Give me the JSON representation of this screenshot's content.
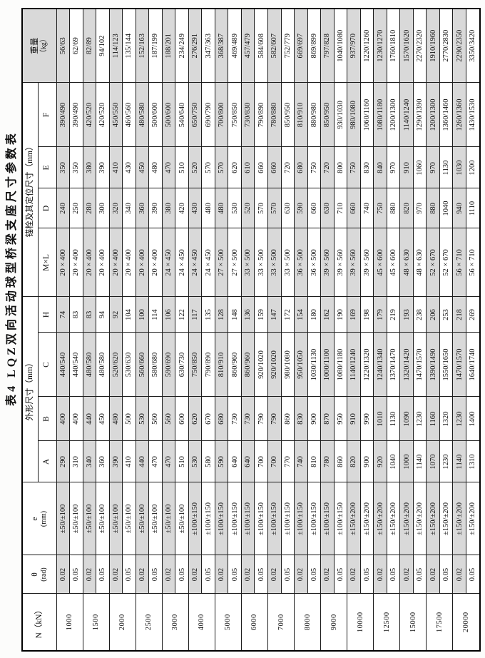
{
  "title": "表4 LQZ双向活动球型桥梁支座尺寸参数表",
  "colors": {
    "stripe": "#d9d9d9",
    "grid": "#1c1c1c",
    "paper": "#fcfcfb"
  },
  "layout_note": "table printed rotated 90° counter-clockwise on portrait page",
  "table": {
    "headers": {
      "load": "N（kN）",
      "theta": "θ",
      "theta_unit": "(rad)",
      "e": "e",
      "e_unit": "(mm)",
      "shape_group": "外形尺寸（mm）",
      "anchor_group": "锚栓及其定位尺寸（mm）",
      "A": "A",
      "B": "B",
      "C": "C",
      "H": "H",
      "MxL": "M×L",
      "D": "D",
      "E": "E",
      "F": "F",
      "weight": "重量",
      "weight_unit": "（kg）"
    },
    "groups": [
      {
        "n": "1000",
        "rows": [
          {
            "theta": "0.02",
            "e": "±50/±100",
            "A": "290",
            "B": "400",
            "C": "440/540",
            "H": "74",
            "MxL": "20 × 400",
            "D": "240",
            "E": "350",
            "F": "390/490",
            "W": "56/63"
          },
          {
            "theta": "0.05",
            "e": "±50/±100",
            "A": "310",
            "B": "400",
            "C": "440/540",
            "H": "83",
            "MxL": "20 × 400",
            "D": "250",
            "E": "350",
            "F": "390/490",
            "W": "62/69"
          }
        ]
      },
      {
        "n": "1500",
        "rows": [
          {
            "theta": "0.02",
            "e": "±50/±100",
            "A": "340",
            "B": "440",
            "C": "480/580",
            "H": "83",
            "MxL": "20 × 400",
            "D": "280",
            "E": "380",
            "F": "420/520",
            "W": "82/89"
          },
          {
            "theta": "0.05",
            "e": "±50/±100",
            "A": "360",
            "B": "450",
            "C": "480/580",
            "H": "94",
            "MxL": "20 × 400",
            "D": "300",
            "E": "390",
            "F": "420/520",
            "W": "94/102"
          }
        ]
      },
      {
        "n": "2000",
        "rows": [
          {
            "theta": "0.02",
            "e": "±50/±100",
            "A": "390",
            "B": "480",
            "C": "520/620",
            "H": "92",
            "MxL": "20 × 400",
            "D": "320",
            "E": "410",
            "F": "450/550",
            "W": "114/123"
          },
          {
            "theta": "0.05",
            "e": "±50/±100",
            "A": "410",
            "B": "500",
            "C": "530/630",
            "H": "104",
            "MxL": "20 × 400",
            "D": "340",
            "E": "430",
            "F": "460/560",
            "W": "135/144"
          }
        ]
      },
      {
        "n": "2500",
        "rows": [
          {
            "theta": "0.02",
            "e": "±50/±100",
            "A": "440",
            "B": "530",
            "C": "560/660",
            "H": "100",
            "MxL": "20 × 400",
            "D": "360",
            "E": "450",
            "F": "480/580",
            "W": "152/163"
          },
          {
            "theta": "0.05",
            "e": "±50/±100",
            "A": "470",
            "B": "560",
            "C": "580/680",
            "H": "114",
            "MxL": "20 × 400",
            "D": "390",
            "E": "480",
            "F": "500/600",
            "W": "187/199"
          }
        ]
      },
      {
        "n": "3000",
        "rows": [
          {
            "theta": "0.02",
            "e": "±50/±100",
            "A": "470",
            "B": "560",
            "C": "590/690",
            "H": "106",
            "MxL": "24 × 450",
            "D": "380",
            "E": "470",
            "F": "500/600",
            "W": "188/201"
          },
          {
            "theta": "0.05",
            "e": "±50/±100",
            "A": "510",
            "B": "600",
            "C": "630/730",
            "H": "122",
            "MxL": "24 × 450",
            "D": "420",
            "E": "510",
            "F": "540/640",
            "W": "234/249"
          }
        ]
      },
      {
        "n": "4000",
        "rows": [
          {
            "theta": "0.02",
            "e": "±100/±150",
            "A": "530",
            "B": "620",
            "C": "750/850",
            "H": "117",
            "MxL": "24 × 450",
            "D": "430",
            "E": "520",
            "F": "650/750",
            "W": "276/291"
          },
          {
            "theta": "0.05",
            "e": "±100/±150",
            "A": "580",
            "B": "670",
            "C": "790/890",
            "H": "135",
            "MxL": "24 × 450",
            "D": "480",
            "E": "570",
            "F": "690/790",
            "W": "347/363"
          }
        ]
      },
      {
        "n": "5000",
        "rows": [
          {
            "theta": "0.02",
            "e": "±100/±150",
            "A": "590",
            "B": "680",
            "C": "810/910",
            "H": "128",
            "MxL": "27 × 500",
            "D": "480",
            "E": "570",
            "F": "700/800",
            "W": "368/387"
          },
          {
            "theta": "0.05",
            "e": "±100/±150",
            "A": "640",
            "B": "730",
            "C": "860/960",
            "H": "148",
            "MxL": "27 × 500",
            "D": "530",
            "E": "620",
            "F": "750/850",
            "W": "469/489"
          }
        ]
      },
      {
        "n": "6000",
        "rows": [
          {
            "theta": "0.02",
            "e": "±100/±150",
            "A": "640",
            "B": "730",
            "C": "860/960",
            "H": "136",
            "MxL": "33 × 500",
            "D": "520",
            "E": "610",
            "F": "730/830",
            "W": "457/479"
          },
          {
            "theta": "0.05",
            "e": "±100/±150",
            "A": "700",
            "B": "790",
            "C": "920/1020",
            "H": "159",
            "MxL": "33 × 500",
            "D": "570",
            "E": "660",
            "F": "790/890",
            "W": "584/608"
          }
        ]
      },
      {
        "n": "7000",
        "rows": [
          {
            "theta": "0.02",
            "e": "±100/±150",
            "A": "700",
            "B": "790",
            "C": "920/1020",
            "H": "147",
            "MxL": "33 × 500",
            "D": "570",
            "E": "660",
            "F": "780/880",
            "W": "582/607"
          },
          {
            "theta": "0.05",
            "e": "±100/±150",
            "A": "770",
            "B": "860",
            "C": "980/1080",
            "H": "172",
            "MxL": "33 × 500",
            "D": "630",
            "E": "720",
            "F": "850/950",
            "W": "752/779"
          }
        ]
      },
      {
        "n": "8000",
        "rows": [
          {
            "theta": "0.02",
            "e": "±100/±150",
            "A": "740",
            "B": "830",
            "C": "950/1050",
            "H": "154",
            "MxL": "36 × 500",
            "D": "590",
            "E": "680",
            "F": "810/910",
            "W": "669/697"
          },
          {
            "theta": "0.05",
            "e": "±100/±150",
            "A": "810",
            "B": "900",
            "C": "1030/1130",
            "H": "180",
            "MxL": "36 × 500",
            "D": "660",
            "E": "750",
            "F": "880/980",
            "W": "869/899"
          }
        ]
      },
      {
        "n": "9000",
        "rows": [
          {
            "theta": "0.02",
            "e": "±100/±150",
            "A": "780",
            "B": "870",
            "C": "1000/1100",
            "H": "162",
            "MxL": "39 × 560",
            "D": "630",
            "E": "720",
            "F": "850/950",
            "W": "797/828"
          },
          {
            "theta": "0.05",
            "e": "±100/±150",
            "A": "860",
            "B": "950",
            "C": "1080/1180",
            "H": "190",
            "MxL": "39 × 560",
            "D": "710",
            "E": "800",
            "F": "930/1030",
            "W": "1040/1080"
          }
        ]
      },
      {
        "n": "10000",
        "rows": [
          {
            "theta": "0.02",
            "e": "±150/±200",
            "A": "820",
            "B": "910",
            "C": "1140/1240",
            "H": "169",
            "MxL": "39 × 560",
            "D": "660",
            "E": "750",
            "F": "980/1080",
            "W": "937/970"
          },
          {
            "theta": "0.05",
            "e": "±150/±200",
            "A": "900",
            "B": "990",
            "C": "1220/1320",
            "H": "198",
            "MxL": "39 × 560",
            "D": "740",
            "E": "830",
            "F": "1060/1160",
            "W": "1220/1260"
          }
        ]
      },
      {
        "n": "12500",
        "rows": [
          {
            "theta": "0.02",
            "e": "±150/±200",
            "A": "920",
            "B": "1010",
            "C": "1240/1340",
            "H": "179",
            "MxL": "45 × 600",
            "D": "750",
            "E": "840",
            "F": "1080/1180",
            "W": "1230/1270"
          },
          {
            "theta": "0.05",
            "e": "±150/±200",
            "A": "1040",
            "B": "1130",
            "C": "1370/1470",
            "H": "219",
            "MxL": "45 × 600",
            "D": "880",
            "E": "970",
            "F": "1200/1300",
            "W": "1760/1810"
          }
        ]
      },
      {
        "n": "15000",
        "rows": [
          {
            "theta": "0.02",
            "e": "±150/±200",
            "A": "1000",
            "B": "1090",
            "C": "1320/1420",
            "H": "193",
            "MxL": "48 × 630",
            "D": "820",
            "E": "910",
            "F": "1140/1240",
            "W": "1570/1620"
          },
          {
            "theta": "0.05",
            "e": "±150/±200",
            "A": "1140",
            "B": "1230",
            "C": "1470/1570",
            "H": "238",
            "MxL": "48 × 630",
            "D": "970",
            "E": "1060",
            "F": "1290/1390",
            "W": "2270/2320"
          }
        ]
      },
      {
        "n": "17500",
        "rows": [
          {
            "theta": "0.02",
            "e": "±150/±200",
            "A": "1070",
            "B": "1160",
            "C": "1390/1490",
            "H": "206",
            "MxL": "52 × 670",
            "D": "880",
            "E": "970",
            "F": "1200/1300",
            "W": "1910/1960"
          },
          {
            "theta": "0.05",
            "e": "±150/±200",
            "A": "1230",
            "B": "1320",
            "C": "1550/1650",
            "H": "253",
            "MxL": "52 × 670",
            "D": "1040",
            "E": "1130",
            "F": "1360/1460",
            "W": "2770/2830"
          }
        ]
      },
      {
        "n": "20000",
        "rows": [
          {
            "theta": "0.02",
            "e": "±150/±200",
            "A": "1140",
            "B": "1230",
            "C": "1470/1570",
            "H": "218",
            "MxL": "56 × 710",
            "D": "940",
            "E": "1030",
            "F": "1260/1360",
            "W": "2290/2350"
          },
          {
            "theta": "0.05",
            "e": "±150/±200",
            "A": "1310",
            "B": "1400",
            "C": "1640/1740",
            "H": "269",
            "MxL": "56 × 710",
            "D": "1110",
            "E": "1200",
            "F": "1430/1530",
            "W": "3350/3420"
          }
        ]
      }
    ]
  }
}
